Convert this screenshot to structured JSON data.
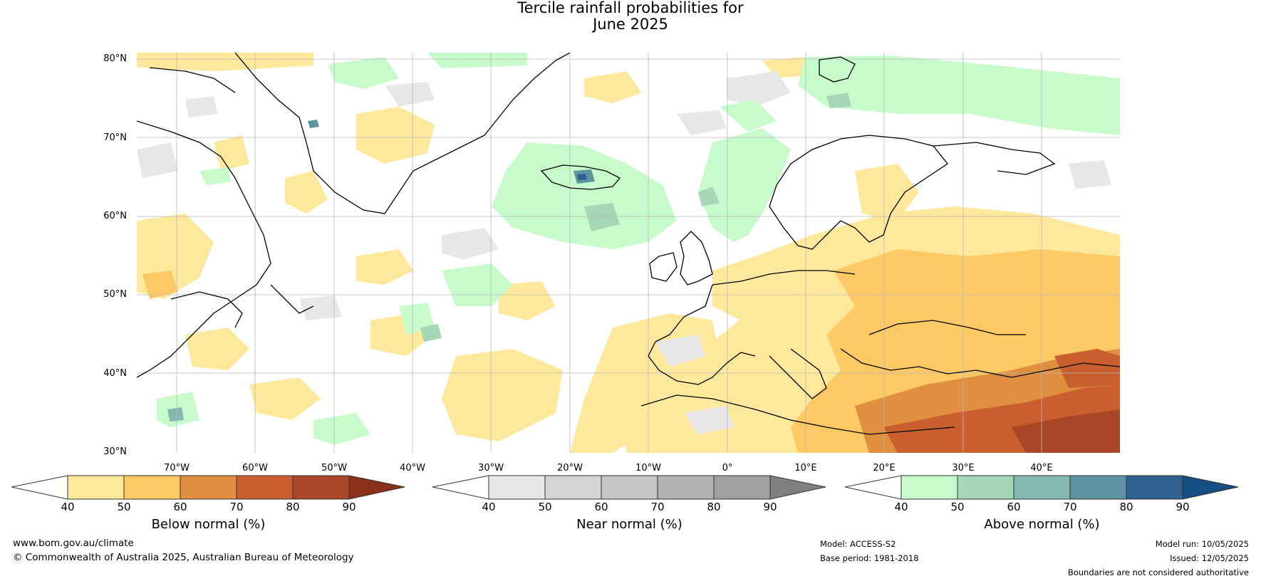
{
  "title": {
    "line1": "Tercile rainfall probabilities for",
    "line2": "June 2025"
  },
  "map": {
    "projection": "equirectangular",
    "lon_range": [
      -80,
      50
    ],
    "lat_range": [
      30,
      81
    ],
    "grid": true,
    "lat_labels": [
      "80°N",
      "70°N",
      "60°N",
      "50°N",
      "40°N",
      "30°N"
    ],
    "lon_labels": [
      "70°W",
      "60°W",
      "50°W",
      "40°W",
      "30°W",
      "20°W",
      "10°W",
      "0°",
      "10°E",
      "20°E",
      "30°E",
      "40°E"
    ],
    "colors": {
      "below": [
        "#fee89b",
        "#fdc964",
        "#e08e3f",
        "#c95f2e",
        "#a94628",
        "#8b3019"
      ],
      "near": [
        "#e7e7e7",
        "#d5d5d5",
        "#c6c6c6",
        "#b3b3b3",
        "#a1a1a1",
        "#808080"
      ],
      "above": [
        "#c8fbcb",
        "#a5d6b5",
        "#85b8b1",
        "#5b93a0",
        "#30618e",
        "#134f83"
      ]
    }
  },
  "colorbars": [
    {
      "id": "below",
      "label": "Below normal (%)",
      "ticks": [
        "40",
        "50",
        "60",
        "70",
        "80",
        "90"
      ]
    },
    {
      "id": "near",
      "label": "Near normal (%)",
      "ticks": [
        "40",
        "50",
        "60",
        "70",
        "80",
        "90"
      ]
    },
    {
      "id": "above",
      "label": "Above normal (%)",
      "ticks": [
        "40",
        "50",
        "60",
        "70",
        "80",
        "90"
      ]
    }
  ],
  "footer": {
    "url": "www.bom.gov.au/climate",
    "copyright": "© Commonwealth of Australia 2025, Australian Bureau of Meteorology",
    "model": "Model: ACCESS-S2",
    "base_period": "Base period: 1981-2018",
    "model_run": "Model run: 10/05/2025",
    "issued": "Issued: 12/05/2025",
    "disclaimer": "Boundaries are not considered authoritative"
  }
}
